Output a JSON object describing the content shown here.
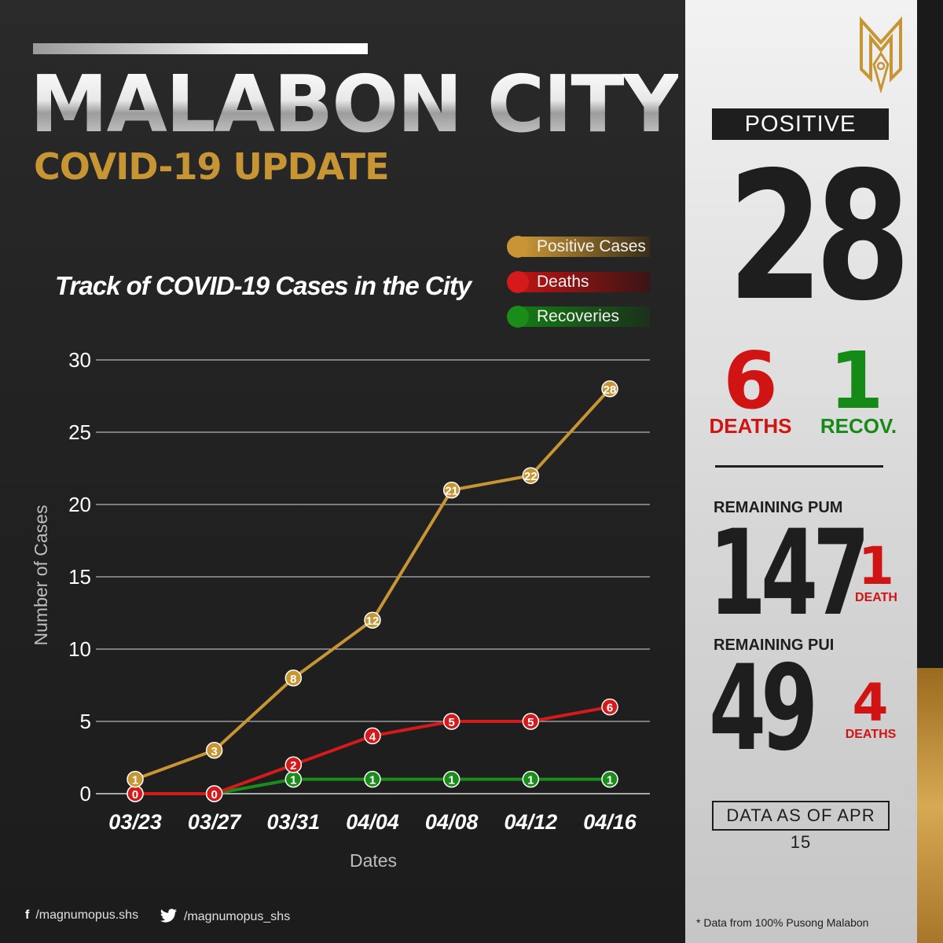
{
  "header": {
    "title": "MALABON CITY",
    "subtitle": "COVID-19 UPDATE"
  },
  "chart_data": {
    "type": "line",
    "title": "Track of COVID-19 Cases in the City",
    "xlabel": "Dates",
    "ylabel": "Number of Cases",
    "categories": [
      "03/23",
      "03/27",
      "03/31",
      "04/04",
      "04/08",
      "04/12",
      "04/16"
    ],
    "ylim": [
      0,
      30
    ],
    "yticks": [
      0,
      5,
      10,
      15,
      20,
      25,
      30
    ],
    "grid": true,
    "legend_position": "top-right",
    "series": [
      {
        "name": "Positive Cases",
        "color": "#c79534",
        "values": [
          1,
          3,
          8,
          12,
          21,
          22,
          28
        ]
      },
      {
        "name": "Deaths",
        "color": "#d41a1a",
        "values": [
          0,
          0,
          2,
          4,
          5,
          5,
          6
        ]
      },
      {
        "name": "Recoveries",
        "color": "#1a8c1a",
        "values": [
          0,
          0,
          1,
          1,
          1,
          1,
          1
        ]
      }
    ]
  },
  "summary": {
    "positive_label": "POSITIVE",
    "positive_value": "28",
    "deaths_value": "6",
    "deaths_label": "DEATHS",
    "recoveries_value": "1",
    "recoveries_label": "RECOV.",
    "pum_label": "REMAINING PUM",
    "pum_value": "147",
    "pum_deaths_value": "1",
    "pum_deaths_label": "DEATH",
    "pui_label": "REMAINING PUI",
    "pui_value": "49",
    "pui_deaths_value": "4",
    "pui_deaths_label": "DEATHS",
    "as_of": "DATA AS OF APR 15"
  },
  "footer": {
    "facebook": "/magnumopus.shs",
    "twitter": "/magnumopus_shs",
    "source_note": "* Data from 100% Pusong Malabon"
  },
  "icons": {
    "facebook": "facebook-icon",
    "twitter": "twitter-icon",
    "logo": "magnum-opus-logo"
  }
}
